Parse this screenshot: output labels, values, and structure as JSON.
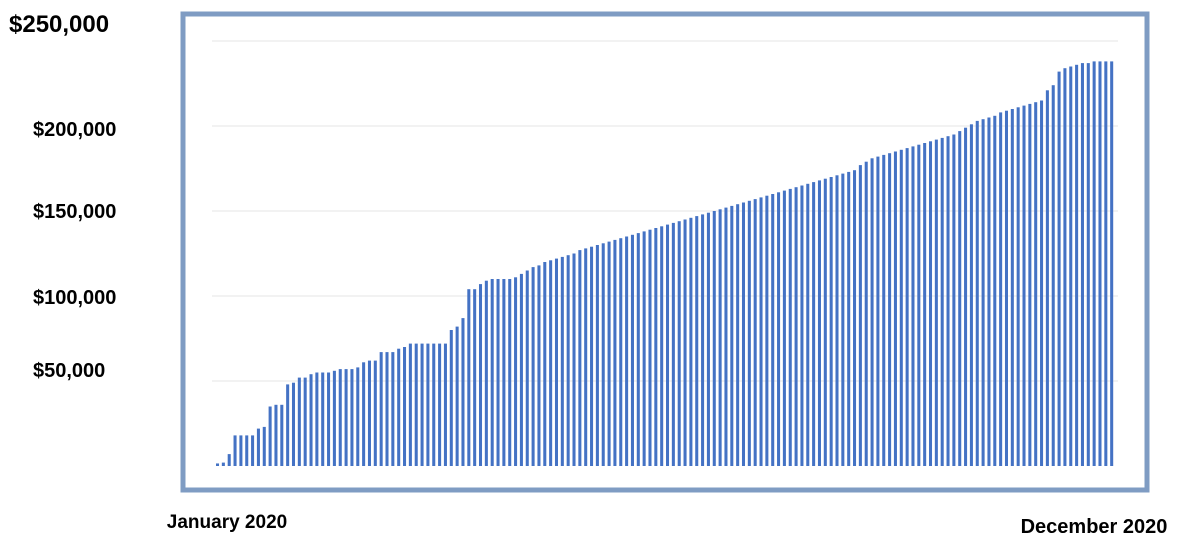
{
  "colors": {
    "bar": "#4472c4",
    "frame": "#7f9cc3",
    "grid": "#e6e6e6",
    "background": "#ffffff",
    "text": "#000000"
  },
  "chart_data": {
    "type": "bar",
    "title": "",
    "xlabel": "",
    "ylabel": "",
    "x_start_label": "January 2020",
    "x_end_label": "December 2020",
    "y_tick_labels": [
      "$50,000",
      "$100,000",
      "$150,000",
      "$200,000",
      "$250,000"
    ],
    "y_tick_values": [
      50000,
      100000,
      150000,
      200000,
      250000
    ],
    "ylim": [
      0,
      250000
    ],
    "grid": true,
    "legend": "none",
    "values": [
      1500,
      2000,
      7000,
      18000,
      18000,
      18000,
      18000,
      22000,
      23000,
      35000,
      36000,
      36000,
      48000,
      49000,
      52000,
      52000,
      54000,
      55000,
      55000,
      55000,
      56000,
      57000,
      57000,
      57000,
      58000,
      61000,
      62000,
      62000,
      67000,
      67000,
      67000,
      69000,
      70000,
      72000,
      72000,
      72000,
      72000,
      72000,
      72000,
      72000,
      80000,
      82000,
      87000,
      104000,
      104000,
      107000,
      109000,
      110000,
      110000,
      110000,
      110000,
      111000,
      113000,
      115000,
      117000,
      118000,
      120000,
      121000,
      122000,
      123000,
      124000,
      125000,
      127000,
      128000,
      129000,
      130000,
      131000,
      132000,
      133000,
      134000,
      135000,
      136000,
      137000,
      138000,
      139000,
      140000,
      141000,
      142000,
      143000,
      144000,
      145000,
      146000,
      147000,
      148000,
      149000,
      150000,
      151000,
      152000,
      153000,
      154000,
      155000,
      156000,
      157000,
      158000,
      159000,
      160000,
      161000,
      162000,
      163000,
      164000,
      165000,
      166000,
      167000,
      168000,
      169000,
      170000,
      171000,
      172000,
      173000,
      174000,
      177000,
      179000,
      181000,
      182000,
      183000,
      184000,
      185000,
      186000,
      187000,
      188000,
      189000,
      190000,
      191000,
      192000,
      193000,
      194000,
      195000,
      197000,
      199000,
      201000,
      203000,
      204000,
      205000,
      206000,
      208000,
      209000,
      210000,
      211000,
      212000,
      213000,
      214000,
      215000,
      221000,
      224000,
      232000,
      234000,
      235000,
      236000,
      237000,
      237000,
      238000,
      238000,
      238000,
      238000
    ]
  }
}
